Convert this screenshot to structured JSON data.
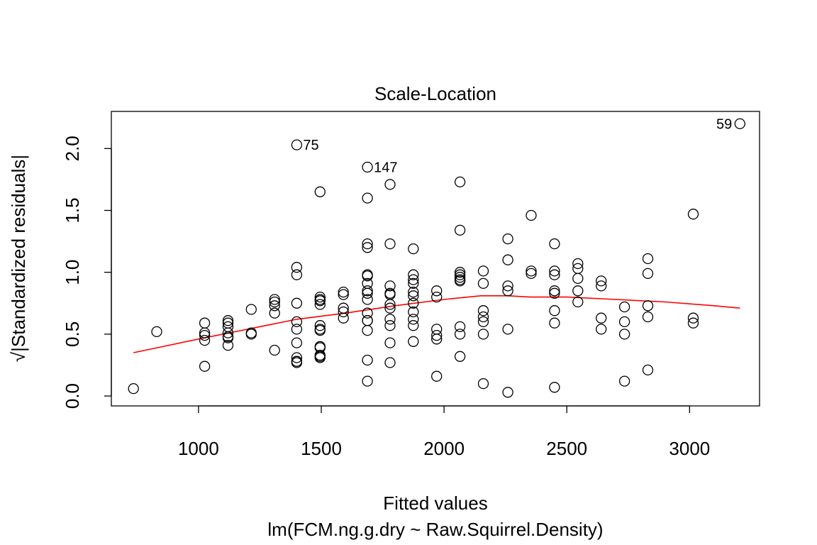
{
  "chart_data": {
    "type": "scatter",
    "title": "Scale-Location",
    "xlabel": "Fitted values",
    "subtitle": "lm(FCM.ng.g.dry ~ Raw.Squirrel.Density)",
    "ylabel": "√|Standardized residuals|",
    "xlim": [
      645,
      3285
    ],
    "ylim": [
      -0.08,
      2.3
    ],
    "xticks": [
      1000,
      1500,
      2000,
      2500,
      3000
    ],
    "xtick_labels": [
      "1000",
      "1500",
      "2000",
      "2500",
      "3000"
    ],
    "yticks": [
      0.0,
      0.5,
      1.0,
      1.5,
      2.0
    ],
    "ytick_labels": [
      "0.0",
      "0.5",
      "1.0",
      "1.5",
      "2.0"
    ],
    "grid": false,
    "legend": "none",
    "colors": {
      "points": "#000000",
      "smoother": "#ff0000"
    },
    "labeled_points": [
      {
        "label": "75",
        "x": 1400,
        "y": 2.03,
        "side": "right"
      },
      {
        "label": "147",
        "x": 1688,
        "y": 1.85,
        "side": "right"
      },
      {
        "label": "59",
        "x": 3205,
        "y": 2.2,
        "side": "left"
      }
    ],
    "smoother": {
      "x": [
        735,
        1000,
        1200,
        1400,
        1600,
        1800,
        2000,
        2150,
        2260,
        2350,
        2500,
        2700,
        2900,
        3100,
        3205
      ],
      "y": [
        0.35,
        0.46,
        0.54,
        0.62,
        0.67,
        0.73,
        0.78,
        0.81,
        0.81,
        0.8,
        0.8,
        0.78,
        0.76,
        0.73,
        0.71
      ]
    },
    "points": {
      "x": [
        735,
        830,
        1025,
        1025,
        1025,
        1025,
        1025,
        1120,
        1120,
        1120,
        1120,
        1120,
        1120,
        1120,
        1215,
        1215,
        1215,
        1310,
        1310,
        1310,
        1310,
        1310,
        1400,
        1400,
        1400,
        1400,
        1400,
        1400,
        1400,
        1400,
        1400,
        1400,
        1400,
        1495,
        1495,
        1495,
        1495,
        1495,
        1495,
        1495,
        1495,
        1495,
        1495,
        1495,
        1495,
        1495,
        1590,
        1590,
        1590,
        1590,
        1590,
        1688,
        1688,
        1688,
        1688,
        1688,
        1688,
        1688,
        1688,
        1688,
        1688,
        1688,
        1688,
        1688,
        1688,
        1688,
        1688,
        1780,
        1780,
        1780,
        1780,
        1780,
        1780,
        1780,
        1780,
        1780,
        1780,
        1780,
        1875,
        1875,
        1875,
        1875,
        1875,
        1875,
        1875,
        1875,
        1875,
        1875,
        1875,
        1970,
        1970,
        1970,
        1970,
        1970,
        1970,
        2065,
        2065,
        2065,
        2065,
        2065,
        2065,
        2065,
        2065,
        2065,
        2065,
        2160,
        2160,
        2160,
        2160,
        2160,
        2160,
        2160,
        2260,
        2260,
        2260,
        2260,
        2260,
        2260,
        2355,
        2355,
        2355,
        2450,
        2450,
        2450,
        2450,
        2450,
        2450,
        2450,
        2450,
        2545,
        2545,
        2545,
        2545,
        2545,
        2640,
        2640,
        2640,
        2640,
        2735,
        2735,
        2735,
        2735,
        2830,
        2830,
        2830,
        2830,
        2830,
        3015,
        3015,
        3015,
        3205
      ],
      "y": [
        0.06,
        0.52,
        0.59,
        0.51,
        0.49,
        0.45,
        0.24,
        0.61,
        0.59,
        0.56,
        0.51,
        0.47,
        0.41,
        0.48,
        0.7,
        0.51,
        0.5,
        0.78,
        0.76,
        0.73,
        0.67,
        0.37,
        2.03,
        1.04,
        0.98,
        0.75,
        0.6,
        0.54,
        0.43,
        0.31,
        0.28,
        0.27,
        0.28,
        1.65,
        0.8,
        0.78,
        0.77,
        0.74,
        0.57,
        0.54,
        0.53,
        0.4,
        0.39,
        0.33,
        0.31,
        0.32,
        0.84,
        0.82,
        0.71,
        0.68,
        0.63,
        1.85,
        1.6,
        1.23,
        1.2,
        0.98,
        0.97,
        0.91,
        0.85,
        0.83,
        0.78,
        0.67,
        0.61,
        0.61,
        0.53,
        0.29,
        0.12,
        1.71,
        1.23,
        0.89,
        0.83,
        0.82,
        0.74,
        0.71,
        0.62,
        0.57,
        0.43,
        0.27,
        1.19,
        0.98,
        0.94,
        0.91,
        0.84,
        0.81,
        0.75,
        0.68,
        0.62,
        0.57,
        0.44,
        0.85,
        0.8,
        0.54,
        0.49,
        0.46,
        0.16,
        1.73,
        1.34,
        1.0,
        0.98,
        0.96,
        0.94,
        0.93,
        0.56,
        0.5,
        0.32,
        1.01,
        0.91,
        0.69,
        0.64,
        0.6,
        0.5,
        0.1,
        1.27,
        1.1,
        0.89,
        0.85,
        0.54,
        0.03,
        1.46,
        1.01,
        0.99,
        1.23,
        1.01,
        0.98,
        0.85,
        0.83,
        0.69,
        0.59,
        0.07,
        1.07,
        1.03,
        0.95,
        0.85,
        0.76,
        0.93,
        0.89,
        0.63,
        0.54,
        0.72,
        0.6,
        0.5,
        0.12,
        1.11,
        0.99,
        0.73,
        0.64,
        0.21,
        1.47,
        0.63,
        0.59,
        2.2
      ]
    }
  }
}
